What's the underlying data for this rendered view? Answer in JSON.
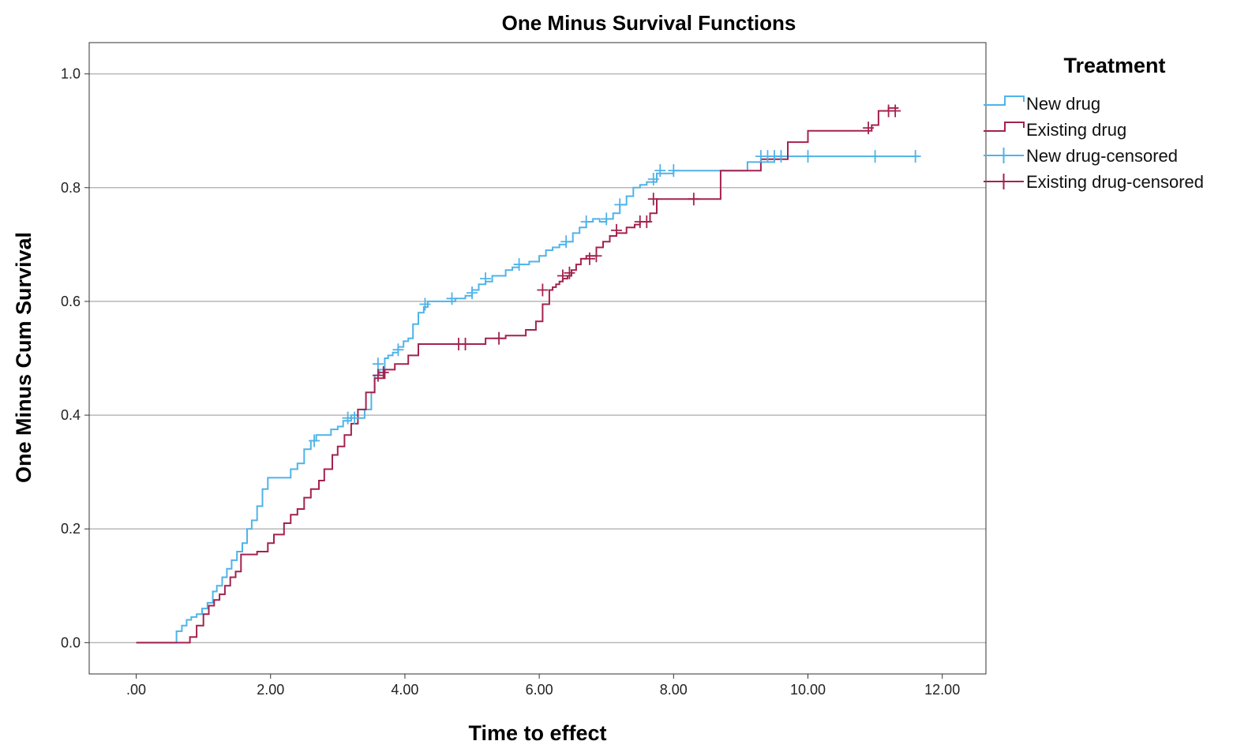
{
  "chart_data": {
    "type": "line",
    "step": true,
    "title": "One Minus Survival Functions",
    "xlabel": "Time to effect",
    "ylabel": "One Minus Cum Survival",
    "xlim": [
      -0.7,
      12.65
    ],
    "ylim": [
      -0.055,
      1.055
    ],
    "x_ticks": [
      0,
      2,
      4,
      6,
      8,
      10,
      12
    ],
    "x_tick_labels": [
      ".00",
      "2.00",
      "4.00",
      "6.00",
      "8.00",
      "10.00",
      "12.00"
    ],
    "y_ticks": [
      0,
      0.2,
      0.4,
      0.6,
      0.8,
      1.0
    ],
    "y_tick_labels": [
      "0.0",
      "0.2",
      "0.4",
      "0.6",
      "0.8",
      "1.0"
    ],
    "grid": "horizontal",
    "legend": {
      "title": "Treatment",
      "placement": "right",
      "entries": [
        "New drug",
        "Existing drug",
        "New drug-censored",
        "Existing drug-censored"
      ]
    },
    "series": [
      {
        "name": "New drug",
        "color": "#4FB3E8",
        "x": [
          0,
          0.6,
          0.68,
          0.75,
          0.82,
          0.9,
          0.98,
          1.06,
          1.14,
          1.2,
          1.28,
          1.35,
          1.42,
          1.5,
          1.58,
          1.65,
          1.72,
          1.8,
          1.88,
          1.96,
          2.1,
          2.3,
          2.4,
          2.5,
          2.6,
          2.68,
          2.75,
          2.9,
          3.0,
          3.08,
          3.2,
          3.3,
          3.4,
          3.5,
          3.55,
          3.62,
          3.7,
          3.75,
          3.82,
          3.9,
          3.98,
          4.05,
          4.12,
          4.2,
          4.28,
          4.34,
          4.45,
          4.6,
          4.75,
          4.9,
          5.0,
          5.1,
          5.2,
          5.3,
          5.5,
          5.6,
          5.7,
          5.85,
          6.0,
          6.1,
          6.2,
          6.3,
          6.4,
          6.5,
          6.6,
          6.7,
          6.8,
          6.9,
          7.0,
          7.1,
          7.2,
          7.3,
          7.4,
          7.5,
          7.6,
          7.75,
          8.0,
          9.1,
          9.5,
          11.65
        ],
        "y": [
          0,
          0.02,
          0.03,
          0.04,
          0.045,
          0.05,
          0.06,
          0.07,
          0.09,
          0.1,
          0.115,
          0.13,
          0.145,
          0.16,
          0.175,
          0.2,
          0.215,
          0.24,
          0.27,
          0.29,
          0.29,
          0.305,
          0.315,
          0.34,
          0.355,
          0.365,
          0.365,
          0.375,
          0.38,
          0.39,
          0.4,
          0.395,
          0.41,
          0.44,
          0.47,
          0.48,
          0.5,
          0.505,
          0.51,
          0.52,
          0.53,
          0.535,
          0.56,
          0.58,
          0.59,
          0.6,
          0.6,
          0.6,
          0.605,
          0.61,
          0.62,
          0.63,
          0.635,
          0.645,
          0.655,
          0.66,
          0.665,
          0.67,
          0.68,
          0.69,
          0.695,
          0.7,
          0.705,
          0.72,
          0.73,
          0.74,
          0.745,
          0.74,
          0.745,
          0.755,
          0.77,
          0.785,
          0.8,
          0.805,
          0.81,
          0.825,
          0.83,
          0.845,
          0.855,
          0.855
        ]
      },
      {
        "name": "Existing drug",
        "color": "#A3224F",
        "x": [
          0,
          0.8,
          0.9,
          1.0,
          1.08,
          1.16,
          1.24,
          1.32,
          1.4,
          1.48,
          1.56,
          1.8,
          1.96,
          2.05,
          2.2,
          2.3,
          2.4,
          2.5,
          2.6,
          2.72,
          2.8,
          2.92,
          3.0,
          3.1,
          3.2,
          3.3,
          3.42,
          3.55,
          3.7,
          3.85,
          4.05,
          4.2,
          5.2,
          5.5,
          5.8,
          5.95,
          6.05,
          6.15,
          6.2,
          6.25,
          6.3,
          6.35,
          6.42,
          6.48,
          6.55,
          6.62,
          6.7,
          6.85,
          6.95,
          7.05,
          7.15,
          7.3,
          7.42,
          7.5,
          7.65,
          7.75,
          8.7,
          9.3,
          9.7,
          10.0,
          10.95,
          11.05,
          11.2,
          11.35
        ],
        "y": [
          0,
          0.01,
          0.03,
          0.05,
          0.065,
          0.075,
          0.085,
          0.1,
          0.115,
          0.125,
          0.155,
          0.16,
          0.175,
          0.19,
          0.21,
          0.225,
          0.235,
          0.255,
          0.27,
          0.285,
          0.305,
          0.33,
          0.345,
          0.365,
          0.385,
          0.41,
          0.44,
          0.465,
          0.48,
          0.49,
          0.505,
          0.525,
          0.535,
          0.54,
          0.55,
          0.565,
          0.595,
          0.62,
          0.625,
          0.63,
          0.635,
          0.64,
          0.645,
          0.655,
          0.665,
          0.675,
          0.68,
          0.695,
          0.705,
          0.715,
          0.72,
          0.73,
          0.735,
          0.74,
          0.755,
          0.78,
          0.83,
          0.85,
          0.88,
          0.9,
          0.91,
          0.935,
          0.94,
          0.94
        ]
      }
    ],
    "censored": [
      {
        "name": "New drug-censored",
        "color": "#4FB3E8",
        "points": [
          [
            2.65,
            0.355
          ],
          [
            3.15,
            0.395
          ],
          [
            3.25,
            0.395
          ],
          [
            3.6,
            0.49
          ],
          [
            3.9,
            0.515
          ],
          [
            4.3,
            0.595
          ],
          [
            4.7,
            0.605
          ],
          [
            5.0,
            0.615
          ],
          [
            5.2,
            0.64
          ],
          [
            5.7,
            0.665
          ],
          [
            6.4,
            0.705
          ],
          [
            6.7,
            0.74
          ],
          [
            7.0,
            0.745
          ],
          [
            7.2,
            0.77
          ],
          [
            7.7,
            0.815
          ],
          [
            7.8,
            0.83
          ],
          [
            8.0,
            0.83
          ],
          [
            9.3,
            0.855
          ],
          [
            9.4,
            0.855
          ],
          [
            9.5,
            0.855
          ],
          [
            9.6,
            0.855
          ],
          [
            10.0,
            0.855
          ],
          [
            11.0,
            0.855
          ],
          [
            11.6,
            0.855
          ]
        ]
      },
      {
        "name": "Existing drug-censored",
        "color": "#A3224F",
        "points": [
          [
            3.6,
            0.47
          ],
          [
            3.68,
            0.475
          ],
          [
            4.8,
            0.525
          ],
          [
            4.9,
            0.525
          ],
          [
            5.4,
            0.535
          ],
          [
            6.05,
            0.62
          ],
          [
            6.35,
            0.645
          ],
          [
            6.45,
            0.65
          ],
          [
            6.75,
            0.675
          ],
          [
            6.85,
            0.68
          ],
          [
            7.15,
            0.725
          ],
          [
            7.5,
            0.74
          ],
          [
            7.6,
            0.74
          ],
          [
            7.7,
            0.78
          ],
          [
            8.3,
            0.78
          ],
          [
            10.9,
            0.905
          ],
          [
            11.2,
            0.935
          ],
          [
            11.3,
            0.935
          ]
        ]
      }
    ]
  }
}
